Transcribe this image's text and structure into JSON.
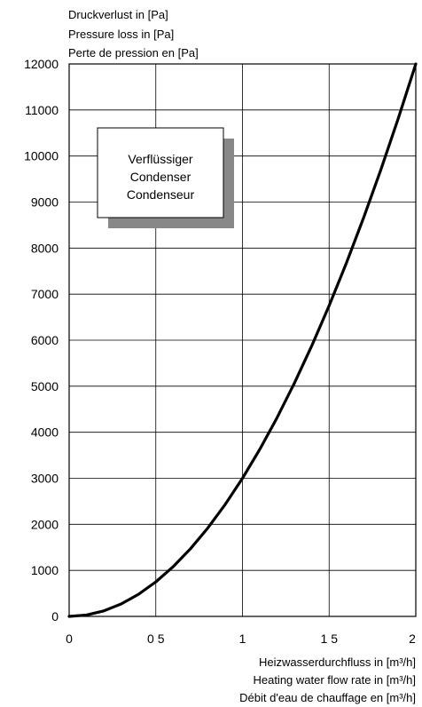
{
  "chart_data": {
    "type": "line",
    "ylabel_lines": [
      "Druckverlust in [Pa]",
      "Pressure loss in [Pa]",
      "Perte de pression en [Pa]"
    ],
    "xlabel_lines": [
      "Heizwasserdurchfluss in [m³/h]",
      "Heating water flow rate in [m³/h]",
      "Débit d'eau de chauffage en [m³/h]"
    ],
    "legend_box_lines": [
      "Verflüssiger",
      "Condenser",
      "Condenseur"
    ],
    "legend_placement": "top-left",
    "xlim": [
      0,
      2
    ],
    "ylim": [
      0,
      12000
    ],
    "x_ticks": [
      0,
      0.5,
      1,
      1.5,
      2
    ],
    "x_tick_labels": [
      "0",
      "0 5",
      "1",
      "1 5",
      "2"
    ],
    "y_ticks": [
      0,
      1000,
      2000,
      3000,
      4000,
      5000,
      6000,
      7000,
      8000,
      9000,
      10000,
      11000,
      12000
    ],
    "y_tick_labels": [
      "0",
      "1000",
      "2000",
      "3000",
      "4000",
      "5000",
      "6000",
      "7000",
      "8000",
      "9000",
      "10000",
      "11000",
      "12000"
    ],
    "grid": true,
    "series": [
      {
        "x": [
          0,
          0.1,
          0.2,
          0.3,
          0.4,
          0.5,
          0.6,
          0.7,
          0.8,
          0.9,
          1.0,
          1.1,
          1.2,
          1.3,
          1.4,
          1.5,
          1.6,
          1.7,
          1.8,
          1.9,
          2.0
        ],
        "values": [
          0,
          30,
          120,
          270,
          480,
          750,
          1080,
          1470,
          1920,
          2430,
          3000,
          3630,
          4320,
          5070,
          5880,
          6750,
          7680,
          8670,
          9720,
          10830,
          12000
        ]
      }
    ]
  }
}
